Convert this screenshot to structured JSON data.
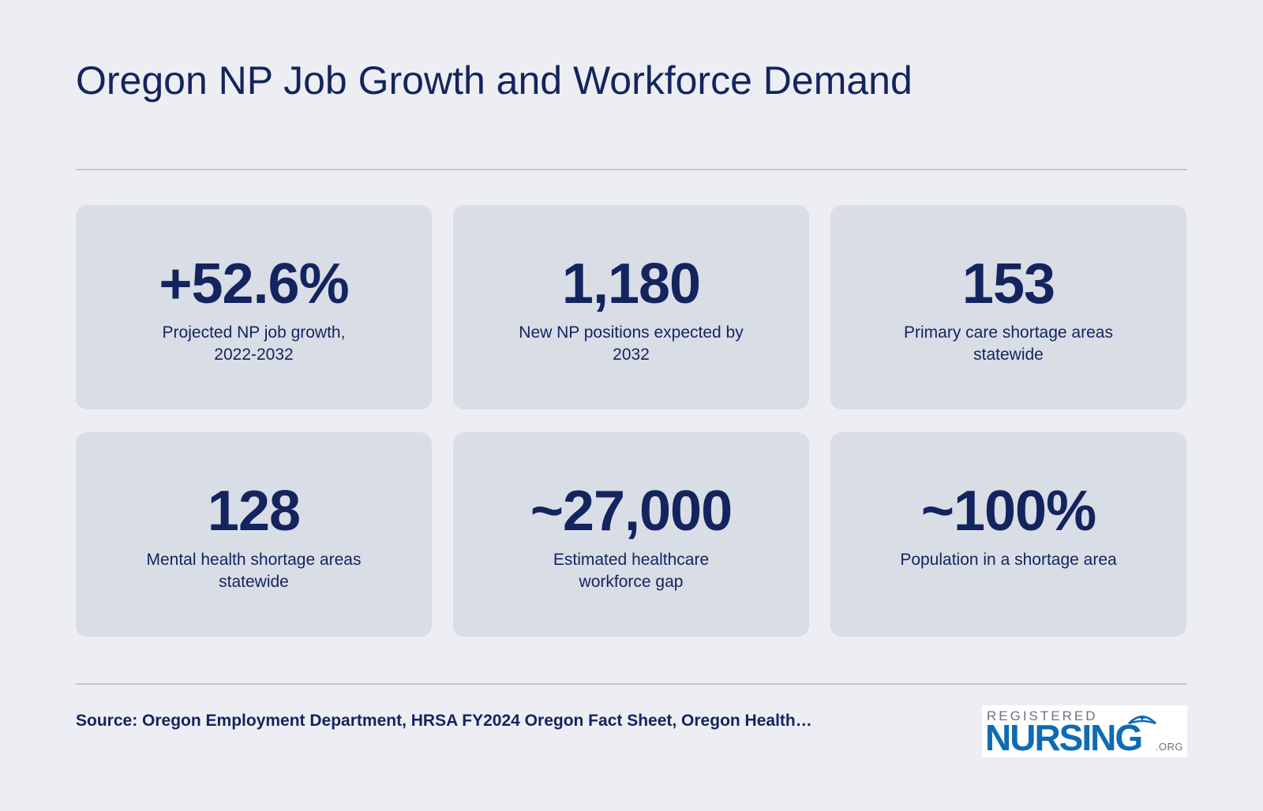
{
  "header": {
    "title": "Oregon NP Job Growth and Workforce Demand"
  },
  "stats": [
    {
      "value": "+52.6%",
      "label": "Projected NP job growth, 2022-2032"
    },
    {
      "value": "1,180",
      "label": "New NP positions expected by 2032"
    },
    {
      "value": "153",
      "label": "Primary care shortage areas statewide"
    },
    {
      "value": "128",
      "label": "Mental health shortage areas statewide"
    },
    {
      "value": "~27,000",
      "label": "Estimated healthcare workforce gap"
    },
    {
      "value": "~100%",
      "label": "Population in a shortage area"
    }
  ],
  "footer": {
    "source": "Source: Oregon Employment Department, HRSA FY2024 Oregon Fact Sheet, Oregon Health…",
    "logo": {
      "top": "REGISTERED",
      "main": "NURSING",
      "tld": ".ORG",
      "icon": "nurse-cap-icon"
    }
  },
  "colors": {
    "background": "#edeef3",
    "card": "#d9dde6",
    "text": "#13245e",
    "logo_blue": "#0e6bb3"
  }
}
